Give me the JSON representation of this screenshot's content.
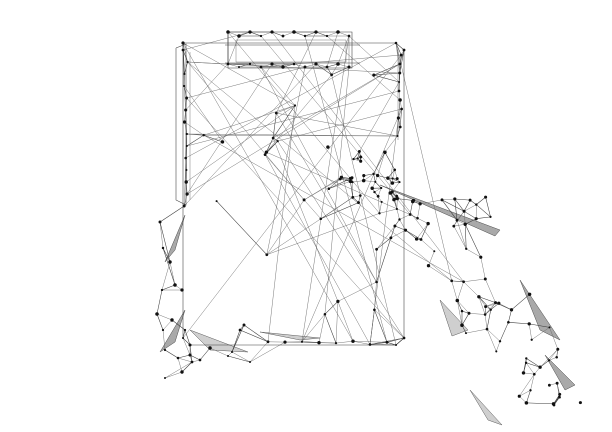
{
  "scene": {
    "subject": "clipboard-held-by-hand",
    "style": "low-poly-wireframe",
    "colors": {
      "background": "#ffffff",
      "line": "#3a3a3a",
      "node": "#111111",
      "facet": "#cfcfcf",
      "facet_dark": "#a9a9a9"
    }
  }
}
